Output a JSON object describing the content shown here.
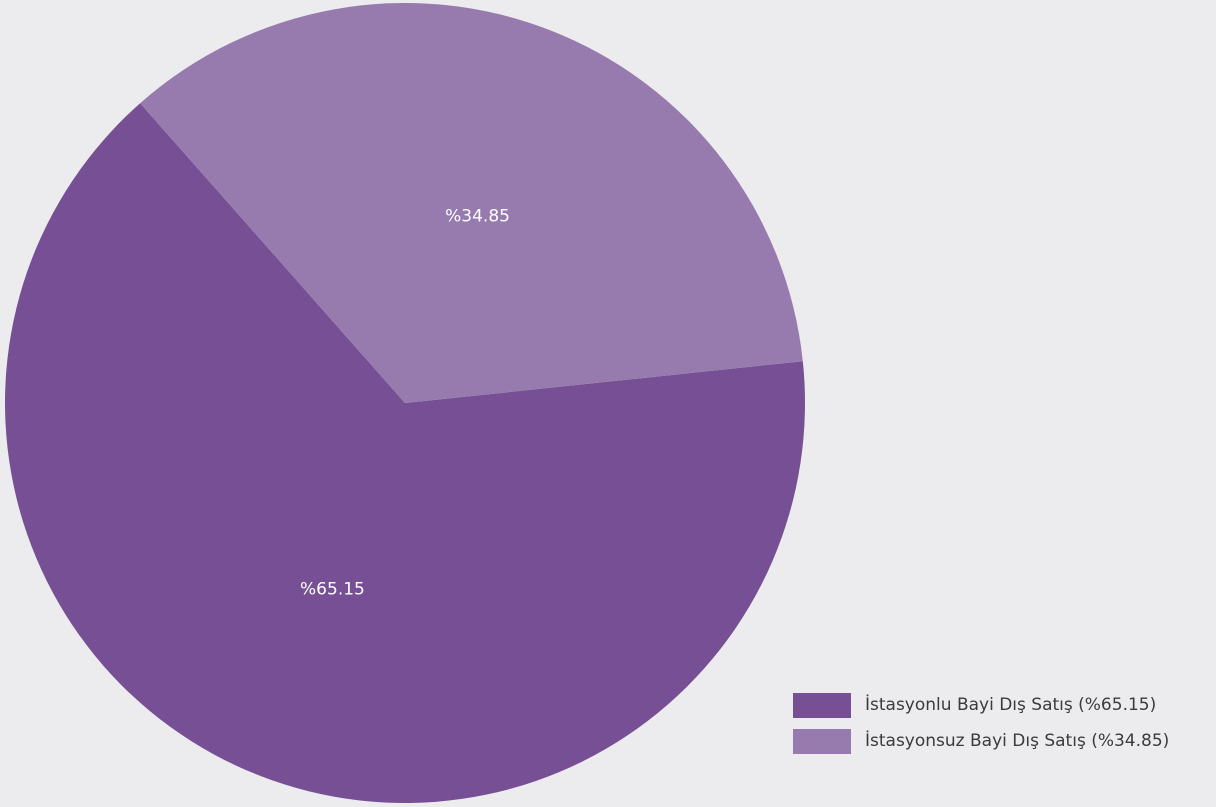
{
  "chart_data": {
    "type": "pie",
    "title": "",
    "legend_position": "bottom-right",
    "slices": [
      {
        "legend_label": "İstasyonlu Bayi Dış Satış (%65.15)",
        "value_label": "%65.15",
        "value": 65.15,
        "color": "#774f94"
      },
      {
        "legend_label": "İstasyonsuz Bayi Dış Satış (%34.85)",
        "value_label": "%34.85",
        "value": 34.85,
        "color": "#977bae"
      }
    ]
  }
}
